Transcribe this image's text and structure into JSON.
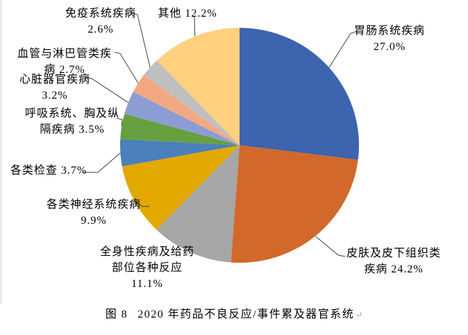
{
  "figure": {
    "caption_prefix": "图 8",
    "caption_text": "2020 年药品不良反应/事件累及器官系统",
    "return_mark": "↵"
  },
  "chart_data": {
    "type": "pie",
    "title": "图 8  2020 年药品不良反应/事件累及器官系统",
    "start_angle_deg": 0,
    "direction": "clockwise",
    "units": "%",
    "legend_position": "none",
    "slices": [
      {
        "name": "胃肠系统疾病",
        "value": 27.0,
        "color": "#3D64AE",
        "label_lines": [
          "胃肠系统疾病",
          "27.0%"
        ]
      },
      {
        "name": "皮肤及皮下组织类疾病",
        "value": 24.2,
        "color": "#D2692B",
        "label_lines": [
          "皮肤及皮下组织类",
          "疾病 24.2%"
        ]
      },
      {
        "name": "全身性疾病及给药部位各种反应",
        "value": 11.1,
        "color": "#A6A6A6",
        "label_lines": [
          "全身性疾病及给药",
          "部位各种反应",
          "11.1%"
        ]
      },
      {
        "name": "各类神经系统疾病",
        "value": 9.9,
        "color": "#E3A800",
        "label_lines": [
          "各类神经系统疾病",
          "9.9%"
        ]
      },
      {
        "name": "各类检查",
        "value": 3.7,
        "color": "#4A80BB",
        "label_lines": [
          "各类检查 3.7%"
        ]
      },
      {
        "name": "呼吸系统、胸及纵隔疾病",
        "value": 3.5,
        "color": "#67A03F",
        "label_lines": [
          "呼吸系统、胸及纵",
          "隔疾病 3.5%"
        ]
      },
      {
        "name": "心脏器官疾病",
        "value": 3.2,
        "color": "#8C9DD4",
        "label_lines": [
          "心脏器官疾病",
          "3.2%"
        ]
      },
      {
        "name": "血管与淋巴管类疾病",
        "value": 2.7,
        "color": "#F2A983",
        "label_lines": [
          "血管与淋巴管类疾",
          "病 2.7%"
        ]
      },
      {
        "name": "免疫系统疾病",
        "value": 2.6,
        "color": "#BFBFBF",
        "label_lines": [
          "免疫系统疾病",
          "2.6%"
        ]
      },
      {
        "name": "其他",
        "value": 12.2,
        "color": "#FFD07E",
        "label_lines": [
          "其他 12.2%"
        ]
      }
    ]
  }
}
